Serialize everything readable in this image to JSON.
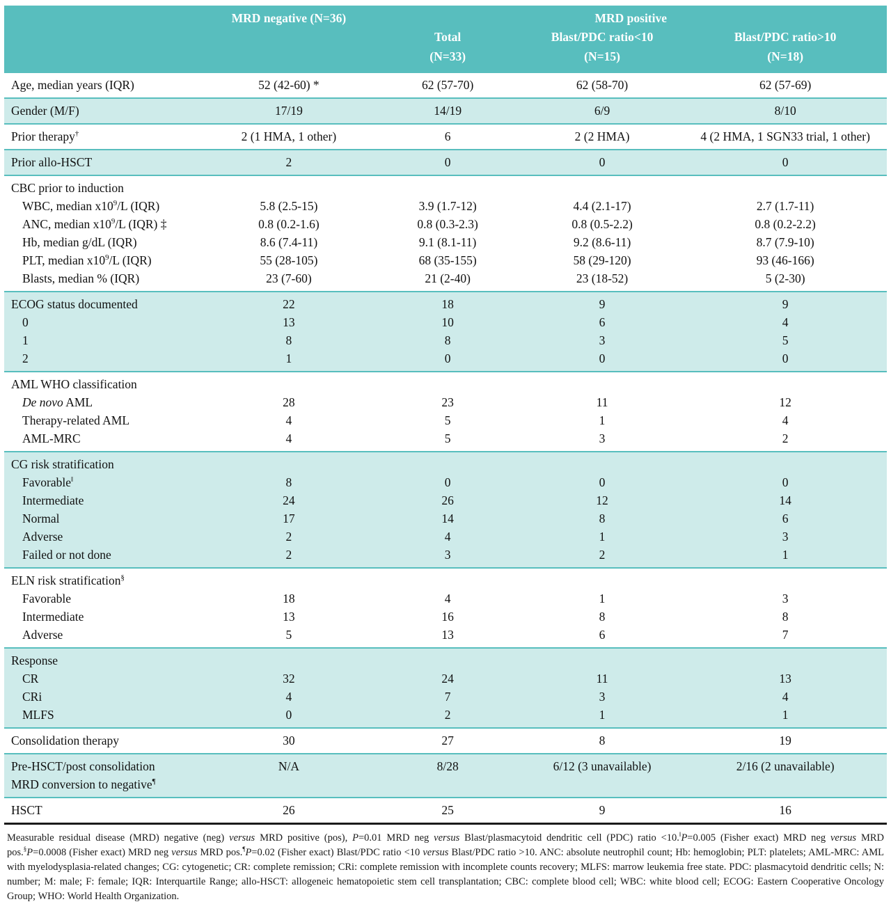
{
  "colors": {
    "header_teal": "#58BEBE",
    "band_teal": "#CEEBEA",
    "rule_teal": "#58BEBE",
    "bottom_line": "#1a1a1a"
  },
  "table": {
    "header": {
      "mrd_negative": "MRD negative (N=36)",
      "mrd_positive": "MRD positive",
      "sub_columns": [
        "Total\n(N=33)",
        "Blast/PDC ratio<10\n(N=15)",
        "Blast/PDC ratio>10\n(N=18)"
      ]
    },
    "bands": [
      {
        "shade": "white",
        "rows": [
          {
            "label": [
              {
                "t": "Age, median years (IQR)"
              }
            ],
            "values": [
              "52 (42-60) *",
              "62 (57-70)",
              "62 (58-70)",
              "62 (57-69)"
            ]
          }
        ]
      },
      {
        "shade": "teal",
        "rows": [
          {
            "label": [
              {
                "t": "Gender (M/F)"
              }
            ],
            "values": [
              "17/19",
              "14/19",
              "6/9",
              "8/10"
            ]
          }
        ]
      },
      {
        "shade": "white",
        "rows": [
          {
            "label": [
              {
                "t": "Prior therapy"
              },
              {
                "t": "†",
                "sup": true
              }
            ],
            "values": [
              "2 (1 HMA, 1 other)",
              "6",
              "2 (2 HMA)",
              "4 (2 HMA, 1 SGN33 trial, 1 other)"
            ]
          }
        ]
      },
      {
        "shade": "teal",
        "rows": [
          {
            "label": [
              {
                "t": "Prior allo-HSCT"
              }
            ],
            "values": [
              "2",
              "0",
              "0",
              "0"
            ]
          }
        ]
      },
      {
        "shade": "white",
        "rows": [
          {
            "label": [
              {
                "t": "CBC prior to induction"
              }
            ],
            "values": [
              "",
              "",
              "",
              ""
            ]
          },
          {
            "label": [
              {
                "t": "WBC, median x10"
              },
              {
                "t": "9",
                "sup": true
              },
              {
                "t": "/L (IQR)"
              }
            ],
            "indent": true,
            "values": [
              "5.8 (2.5-15)",
              "3.9 (1.7-12)",
              "4.4 (2.1-17)",
              "2.7 (1.7-11)"
            ]
          },
          {
            "label": [
              {
                "t": "ANC, median x10"
              },
              {
                "t": "9",
                "sup": true
              },
              {
                "t": "/L (IQR) ‡"
              }
            ],
            "indent": true,
            "values": [
              "0.8 (0.2-1.6)",
              "0.8 (0.3-2.3)",
              "0.8 (0.5-2.2)",
              "0.8 (0.2-2.2)"
            ]
          },
          {
            "label": [
              {
                "t": "Hb, median g/dL (IQR)"
              }
            ],
            "indent": true,
            "values": [
              "8.6 (7.4-11)",
              "9.1 (8.1-11)",
              "9.2 (8.6-11)",
              "8.7 (7.9-10)"
            ]
          },
          {
            "label": [
              {
                "t": "PLT, median x10"
              },
              {
                "t": "9",
                "sup": true
              },
              {
                "t": "/L (IQR)"
              }
            ],
            "indent": true,
            "values": [
              "55 (28-105)",
              "68 (35-155)",
              "58 (29-120)",
              "93 (46-166)"
            ]
          },
          {
            "label": [
              {
                "t": "Blasts, median % (IQR)"
              }
            ],
            "indent": true,
            "values": [
              "23 (7-60)",
              "21 (2-40)",
              "23 (18-52)",
              "5 (2-30)"
            ]
          }
        ]
      },
      {
        "shade": "teal",
        "rows": [
          {
            "label": [
              {
                "t": "ECOG status documented"
              }
            ],
            "values": [
              "22",
              "18",
              "9",
              "9"
            ]
          },
          {
            "label": [
              {
                "t": "0"
              }
            ],
            "indent": true,
            "values": [
              "13",
              "10",
              "6",
              "4"
            ]
          },
          {
            "label": [
              {
                "t": "1"
              }
            ],
            "indent": true,
            "values": [
              "8",
              "8",
              "3",
              "5"
            ]
          },
          {
            "label": [
              {
                "t": "2"
              }
            ],
            "indent": true,
            "values": [
              "1",
              "0",
              "0",
              "0"
            ]
          }
        ]
      },
      {
        "shade": "white",
        "rows": [
          {
            "label": [
              {
                "t": "AML WHO classification"
              }
            ],
            "values": [
              "",
              "",
              "",
              ""
            ]
          },
          {
            "label": [
              {
                "t": "De novo",
                "i": true
              },
              {
                "t": " AML"
              }
            ],
            "indent": true,
            "values": [
              "28",
              "23",
              "11",
              "12"
            ]
          },
          {
            "label": [
              {
                "t": "Therapy-related AML"
              }
            ],
            "indent": true,
            "values": [
              "4",
              "5",
              "1",
              "4"
            ]
          },
          {
            "label": [
              {
                "t": "AML-MRC"
              }
            ],
            "indent": true,
            "values": [
              "4",
              "5",
              "3",
              "2"
            ]
          }
        ]
      },
      {
        "shade": "teal",
        "rows": [
          {
            "label": [
              {
                "t": "CG risk stratification"
              }
            ],
            "values": [
              "",
              "",
              "",
              ""
            ]
          },
          {
            "label": [
              {
                "t": "Favorable"
              },
              {
                "t": "‖",
                "sup": true
              }
            ],
            "indent": true,
            "values": [
              "8",
              "0",
              "0",
              "0"
            ]
          },
          {
            "label": [
              {
                "t": "Intermediate"
              }
            ],
            "indent": true,
            "values": [
              "24",
              "26",
              "12",
              "14"
            ]
          },
          {
            "label": [
              {
                "t": "Normal"
              }
            ],
            "indent": true,
            "values": [
              "17",
              "14",
              "8",
              "6"
            ]
          },
          {
            "label": [
              {
                "t": "Adverse"
              }
            ],
            "indent": true,
            "values": [
              "2",
              "4",
              "1",
              "3"
            ]
          },
          {
            "label": [
              {
                "t": "Failed or not done"
              }
            ],
            "indent": true,
            "values": [
              "2",
              "3",
              "2",
              "1"
            ]
          }
        ]
      },
      {
        "shade": "white",
        "rows": [
          {
            "label": [
              {
                "t": "ELN risk stratification"
              },
              {
                "t": "§",
                "sup": true
              }
            ],
            "values": [
              "",
              "",
              "",
              ""
            ]
          },
          {
            "label": [
              {
                "t": "Favorable"
              }
            ],
            "indent": true,
            "values": [
              "18",
              "4",
              "1",
              "3"
            ]
          },
          {
            "label": [
              {
                "t": "Intermediate"
              }
            ],
            "indent": true,
            "values": [
              "13",
              "16",
              "8",
              "8"
            ]
          },
          {
            "label": [
              {
                "t": "Adverse"
              }
            ],
            "indent": true,
            "values": [
              "5",
              "13",
              "6",
              "7"
            ]
          }
        ]
      },
      {
        "shade": "teal",
        "rows": [
          {
            "label": [
              {
                "t": "Response"
              }
            ],
            "values": [
              "",
              "",
              "",
              ""
            ]
          },
          {
            "label": [
              {
                "t": "CR"
              }
            ],
            "indent": true,
            "values": [
              "32",
              "24",
              "11",
              "13"
            ]
          },
          {
            "label": [
              {
                "t": "CRi"
              }
            ],
            "indent": true,
            "values": [
              "4",
              "7",
              "3",
              "4"
            ]
          },
          {
            "label": [
              {
                "t": "MLFS"
              }
            ],
            "indent": true,
            "values": [
              "0",
              "2",
              "1",
              "1"
            ]
          }
        ]
      },
      {
        "shade": "white",
        "rows": [
          {
            "label": [
              {
                "t": "Consolidation therapy"
              }
            ],
            "values": [
              "30",
              "27",
              "8",
              "19"
            ]
          }
        ]
      },
      {
        "shade": "teal",
        "rows": [
          {
            "label": [
              {
                "t": "Pre-HSCT/post consolidation"
              },
              {
                "br": true
              },
              {
                "t": "MRD conversion to negative"
              },
              {
                "t": "¶",
                "sup": true
              }
            ],
            "values": [
              "N/A",
              "8/28",
              "6/12 (3 unavailable)",
              "2/16 (2 unavailable)"
            ]
          }
        ]
      },
      {
        "shade": "white",
        "rows": [
          {
            "label": [
              {
                "t": "HSCT"
              }
            ],
            "values": [
              "26",
              "25",
              "9",
              "16"
            ]
          }
        ]
      }
    ]
  },
  "footnote": {
    "segments": [
      {
        "t": "Measurable residual disease (MRD) negative (neg) "
      },
      {
        "t": "versus",
        "i": true
      },
      {
        "t": " MRD positive (pos), "
      },
      {
        "t": "P",
        "i": true
      },
      {
        "t": "=0.01 MRD neg "
      },
      {
        "t": "versus",
        "i": true
      },
      {
        "t": " Blast/plasmacytoid dendritic cell (PDC) ratio <10."
      },
      {
        "t": "‖",
        "sup": true
      },
      {
        "t": "P",
        "i": true
      },
      {
        "t": "=0.005 (Fisher exact) MRD neg "
      },
      {
        "t": "versus",
        "i": true
      },
      {
        "t": " MRD pos."
      },
      {
        "t": "§",
        "sup": true
      },
      {
        "t": "P",
        "i": true
      },
      {
        "t": "=0.0008 (Fisher exact) MRD neg "
      },
      {
        "t": "versus",
        "i": true
      },
      {
        "t": " MRD pos."
      },
      {
        "t": "¶",
        "sup": true
      },
      {
        "t": "P",
        "i": true
      },
      {
        "t": "=0.02 (Fisher exact) Blast/PDC ratio <10 "
      },
      {
        "t": "versus",
        "i": true
      },
      {
        "t": " Blast/PDC ratio >10. ANC: absolute neutrophil count; Hb: hemoglobin; PLT: platelets; AML-MRC: AML with myelodysplasia-related changes; CG: cytogenetic; CR: complete remission; CRi: complete remission with incomplete counts recovery; MLFS: marrow leukemia free state. PDC: plasmacytoid dendritic cells; N: number; M: male; F: female; IQR: Interquartile Range; allo-HSCT: allogeneic hematopoietic stem cell transplantation; CBC: complete blood cell; WBC: white blood cell; ECOG: Eastern Cooperative Oncology Group; WHO: World Health Organization."
      }
    ]
  }
}
